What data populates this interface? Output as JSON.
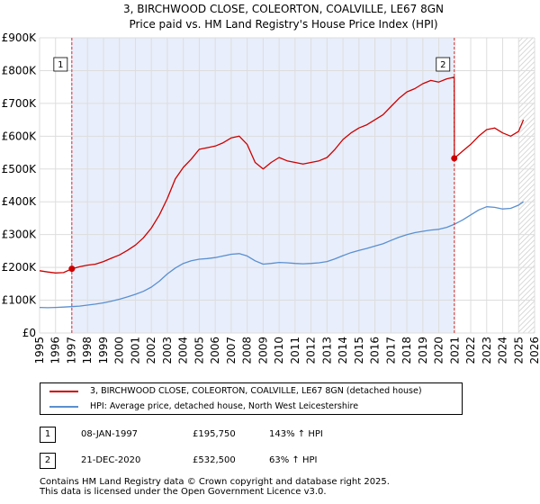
{
  "chart_data": {
    "type": "line",
    "title": "3, BIRCHWOOD CLOSE, COLEORTON, COALVILLE, LE67 8GN",
    "subtitle": "Price paid vs. HM Land Registry's House Price Index (HPI)",
    "xlabel": "",
    "ylabel": "",
    "xlim": [
      1995,
      2026
    ],
    "ylim": [
      0,
      900000
    ],
    "yticks": [
      {
        "value": 0,
        "label": "£0"
      },
      {
        "value": 100000,
        "label": "£100K"
      },
      {
        "value": 200000,
        "label": "£200K"
      },
      {
        "value": 300000,
        "label": "£300K"
      },
      {
        "value": 400000,
        "label": "£400K"
      },
      {
        "value": 500000,
        "label": "£500K"
      },
      {
        "value": 600000,
        "label": "£600K"
      },
      {
        "value": 700000,
        "label": "£700K"
      },
      {
        "value": 800000,
        "label": "£800K"
      },
      {
        "value": 900000,
        "label": "£900K"
      }
    ],
    "xticks": [
      "1995",
      "1996",
      "1997",
      "1998",
      "1999",
      "2000",
      "2001",
      "2002",
      "2003",
      "2004",
      "2005",
      "2006",
      "2007",
      "2008",
      "2009",
      "2010",
      "2011",
      "2012",
      "2013",
      "2014",
      "2015",
      "2016",
      "2017",
      "2018",
      "2019",
      "2020",
      "2021",
      "2022",
      "2023",
      "2024",
      "2025",
      "2026"
    ],
    "grid": true,
    "shaded_period": {
      "start": 1997.02,
      "end": 2020.97
    },
    "hatched_from": 2025.0,
    "series": [
      {
        "name": "3, BIRCHWOOD CLOSE, COLEORTON, COALVILLE, LE67 8GN (detached house)",
        "color": "#cc0000",
        "x": [
          1995.0,
          1995.5,
          1996.0,
          1996.5,
          1997.02,
          1997.5,
          1998.0,
          1998.5,
          1999.0,
          1999.5,
          2000.0,
          2000.5,
          2001.0,
          2001.5,
          2002.0,
          2002.5,
          2003.0,
          2003.5,
          2004.0,
          2004.5,
          2005.0,
          2005.5,
          2006.0,
          2006.5,
          2007.0,
          2007.5,
          2008.0,
          2008.5,
          2009.0,
          2009.5,
          2010.0,
          2010.5,
          2011.0,
          2011.5,
          2012.0,
          2012.5,
          2013.0,
          2013.5,
          2014.0,
          2014.5,
          2015.0,
          2015.5,
          2016.0,
          2016.5,
          2017.0,
          2017.5,
          2018.0,
          2018.5,
          2019.0,
          2019.5,
          2020.0,
          2020.5,
          2020.96,
          2020.97,
          2021.5,
          2022.0,
          2022.5,
          2023.0,
          2023.5,
          2024.0,
          2024.5,
          2025.0,
          2025.3
        ],
        "values": [
          190000,
          186000,
          183000,
          184000,
          195750,
          202000,
          207000,
          210000,
          218000,
          228000,
          238000,
          252000,
          268000,
          290000,
          320000,
          360000,
          410000,
          470000,
          505000,
          530000,
          560000,
          565000,
          570000,
          580000,
          595000,
          600000,
          575000,
          520000,
          500000,
          520000,
          535000,
          525000,
          520000,
          515000,
          520000,
          525000,
          535000,
          560000,
          590000,
          610000,
          625000,
          635000,
          650000,
          665000,
          690000,
          715000,
          735000,
          745000,
          760000,
          770000,
          765000,
          775000,
          780000,
          532500,
          555000,
          575000,
          600000,
          620000,
          625000,
          610000,
          600000,
          615000,
          650000
        ]
      },
      {
        "name": "HPI: Average price, detached house, North West Leicestershire",
        "color": "#5a8fd0",
        "x": [
          1995.0,
          1995.5,
          1996.0,
          1996.5,
          1997.0,
          1997.5,
          1998.0,
          1998.5,
          1999.0,
          1999.5,
          2000.0,
          2000.5,
          2001.0,
          2001.5,
          2002.0,
          2002.5,
          2003.0,
          2003.5,
          2004.0,
          2004.5,
          2005.0,
          2005.5,
          2006.0,
          2006.5,
          2007.0,
          2007.5,
          2008.0,
          2008.5,
          2009.0,
          2009.5,
          2010.0,
          2010.5,
          2011.0,
          2011.5,
          2012.0,
          2012.5,
          2013.0,
          2013.5,
          2014.0,
          2014.5,
          2015.0,
          2015.5,
          2016.0,
          2016.5,
          2017.0,
          2017.5,
          2018.0,
          2018.5,
          2019.0,
          2019.5,
          2020.0,
          2020.5,
          2021.0,
          2021.5,
          2022.0,
          2022.5,
          2023.0,
          2023.5,
          2024.0,
          2024.5,
          2025.0,
          2025.3
        ],
        "values": [
          78000,
          77000,
          78000,
          79000,
          80500,
          82000,
          85000,
          88000,
          92000,
          97000,
          103000,
          110000,
          118000,
          127000,
          140000,
          158000,
          180000,
          198000,
          212000,
          220000,
          225000,
          227000,
          230000,
          235000,
          240000,
          242000,
          235000,
          220000,
          210000,
          212000,
          215000,
          214000,
          212000,
          211000,
          212000,
          214000,
          218000,
          226000,
          236000,
          245000,
          252000,
          258000,
          265000,
          272000,
          282000,
          292000,
          300000,
          306000,
          310000,
          314000,
          316000,
          322000,
          332000,
          345000,
          360000,
          375000,
          385000,
          383000,
          378000,
          380000,
          390000,
          400000
        ]
      }
    ],
    "markers": [
      {
        "label": "1",
        "x": 1997.02,
        "y": 195750
      },
      {
        "label": "2",
        "x": 2020.97,
        "y": 532500
      }
    ]
  },
  "legend": [
    {
      "label": "3, BIRCHWOOD CLOSE, COLEORTON, COALVILLE, LE67 8GN (detached house)",
      "color": "#cc0000"
    },
    {
      "label": "HPI: Average price, detached house, North West Leicestershire",
      "color": "#5a8fd0"
    }
  ],
  "transactions": [
    {
      "num": "1",
      "date": "08-JAN-1997",
      "price": "£195,750",
      "hpi": "143% ↑ HPI"
    },
    {
      "num": "2",
      "date": "21-DEC-2020",
      "price": "£532,500",
      "hpi": "63% ↑ HPI"
    }
  ],
  "footer": {
    "line1": "Contains HM Land Registry data © Crown copyright and database right 2025.",
    "line2": "This data is licensed under the Open Government Licence v3.0."
  }
}
